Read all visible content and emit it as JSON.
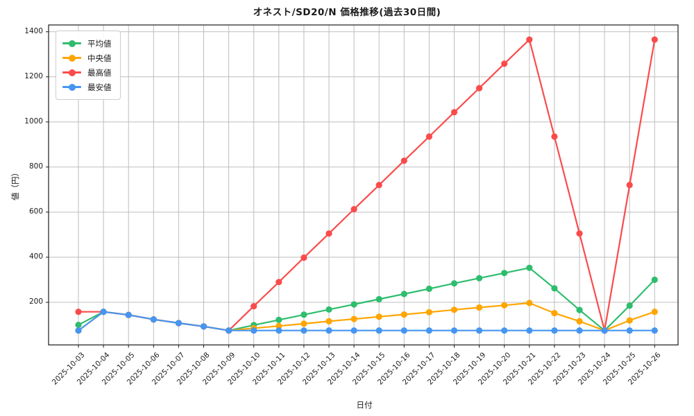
{
  "chart_data": {
    "type": "line",
    "title": "オネスト/SD20/N 価格推移(過去30日間)",
    "xlabel": "日付",
    "ylabel": "値（円）",
    "x": [
      "2025-10-03",
      "2025-10-04",
      "2025-10-05",
      "2025-10-06",
      "2025-10-07",
      "2025-10-08",
      "2025-10-09",
      "2025-10-10",
      "2025-10-11",
      "2025-10-12",
      "2025-10-13",
      "2025-10-14",
      "2025-10-15",
      "2025-10-16",
      "2025-10-17",
      "2025-10-18",
      "2025-10-19",
      "2025-10-20",
      "2025-10-21",
      "2025-10-22",
      "2025-10-23",
      "2025-10-24",
      "2025-10-25",
      "2025-10-26"
    ],
    "series": [
      {
        "name": "平均値",
        "color": "#2ebd6e",
        "values": [
          100,
          158,
          144,
          124,
          108,
          93,
          75,
          99,
          122,
          145,
          168,
          191,
          214,
          237,
          260,
          284,
          307,
          330,
          353,
          262,
          166,
          75,
          185,
          300
        ]
      },
      {
        "name": "中央値",
        "color": "#ffa502",
        "values": [
          75,
          158,
          144,
          124,
          108,
          93,
          75,
          85,
          95,
          105,
          116,
          126,
          136,
          146,
          156,
          167,
          177,
          187,
          197,
          152,
          116,
          75,
          120,
          158
        ]
      },
      {
        "name": "最高値",
        "color": "#fa4b4b",
        "values": [
          158,
          158,
          144,
          124,
          108,
          93,
          75,
          183,
          290,
          398,
          505,
          613,
          720,
          828,
          935,
          1043,
          1150,
          1258,
          1365,
          935,
          505,
          75,
          720,
          1365
        ]
      },
      {
        "name": "最安値",
        "color": "#4695f0",
        "values": [
          75,
          158,
          144,
          124,
          108,
          93,
          75,
          75,
          75,
          75,
          75,
          75,
          75,
          75,
          75,
          75,
          75,
          75,
          75,
          75,
          75,
          75,
          75,
          75
        ]
      }
    ],
    "yticks": [
      200,
      400,
      600,
      800,
      1000,
      1200,
      1400
    ],
    "ylim": [
      11,
      1430
    ],
    "grid": true,
    "grid_color": "#bdbdbd",
    "spine_color": "#1a1a1a",
    "legend_position": "upper left"
  }
}
